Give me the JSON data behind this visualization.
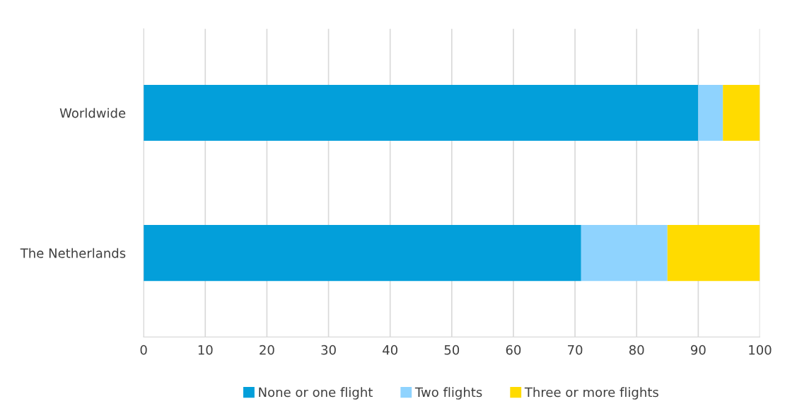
{
  "chart_data": {
    "type": "bar",
    "orientation": "horizontal",
    "stacked": true,
    "categories": [
      "Worldwide",
      "The Netherlands"
    ],
    "series": [
      {
        "name": "None or one flight",
        "color": "#039fda",
        "values": [
          90,
          71
        ]
      },
      {
        "name": "Two flights",
        "color": "#8fd3fe",
        "values": [
          4,
          14
        ]
      },
      {
        "name": "Three or more flights",
        "color": "#ffdb00",
        "values": [
          6,
          15
        ]
      }
    ],
    "xlim": [
      0,
      100
    ],
    "xticks": [
      0,
      10,
      20,
      30,
      40,
      50,
      60,
      70,
      80,
      90,
      100
    ],
    "grid": "x",
    "legend": "bottom"
  }
}
